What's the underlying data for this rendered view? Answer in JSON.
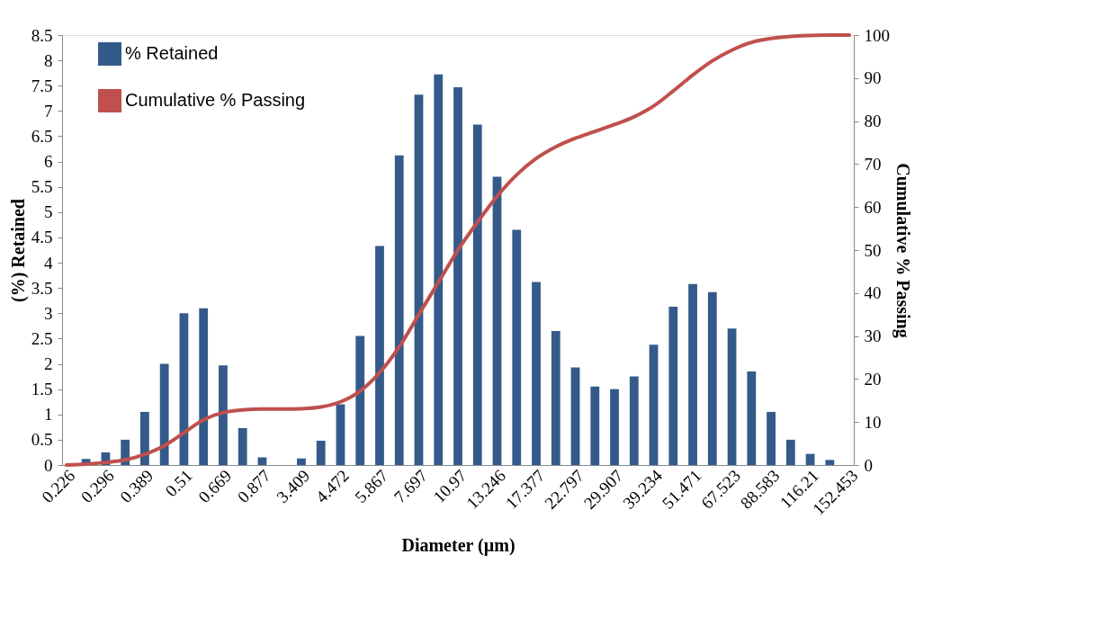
{
  "chart_data": {
    "type": "bar",
    "categories": [
      "0.226",
      null,
      "0.296",
      null,
      "0.389",
      null,
      "0.51",
      null,
      "0.669",
      null,
      "0.877",
      null,
      "3.409",
      null,
      "4.472",
      null,
      "5.867",
      null,
      "7.697",
      null,
      "10.97",
      null,
      "13.246",
      null,
      "17.377",
      null,
      "22.797",
      null,
      "29.907",
      null,
      "39.234",
      null,
      "51.471",
      null,
      "67.523",
      null,
      "88.583",
      null,
      "116.21",
      null,
      "152.453"
    ],
    "series": [
      {
        "name": "% Retained",
        "color": "#345a8a",
        "values": [
          0,
          0.12,
          0.25,
          0.5,
          1.05,
          2.0,
          3.0,
          3.1,
          1.97,
          0.73,
          0.15,
          0,
          0.13,
          0.48,
          1.2,
          2.55,
          4.33,
          6.12,
          7.32,
          7.72,
          7.47,
          6.73,
          5.7,
          4.65,
          3.62,
          2.65,
          1.93,
          1.55,
          1.5,
          1.75,
          2.38,
          3.13,
          3.58,
          3.42,
          2.7,
          1.85,
          1.05,
          0.5,
          0.22,
          0.1,
          0
        ]
      },
      {
        "name": "Cumulative  % Passing",
        "type": "line",
        "axis": "y2",
        "color": "#c0504d",
        "values": [
          0,
          0.2,
          0.6,
          1.2,
          2.5,
          4.5,
          7.5,
          10.5,
          12.2,
          12.8,
          13.0,
          13.0,
          13.1,
          13.5,
          14.7,
          17.2,
          21.5,
          27.5,
          35,
          42.5,
          50,
          56.5,
          62.5,
          67.5,
          71.3,
          74,
          76,
          77.6,
          79.2,
          81,
          83.5,
          87,
          90.7,
          94,
          96.5,
          98.3,
          99.2,
          99.7,
          99.9,
          100,
          100
        ]
      }
    ],
    "xlabel": "Diameter (µm)",
    "ylabel": "(%) Retained",
    "y2label": "Cumulative  % Passing",
    "ylim": [
      0,
      8.5
    ],
    "yticks": [
      0,
      0.5,
      1,
      1.5,
      2,
      2.5,
      3,
      3.5,
      4,
      4.5,
      5,
      5.5,
      6,
      6.5,
      7,
      7.5,
      8,
      8.5
    ],
    "y2lim": [
      0,
      100
    ],
    "y2ticks": [
      0,
      10,
      20,
      30,
      40,
      50,
      60,
      70,
      80,
      90,
      100
    ],
    "legend": "top left",
    "grid": false,
    "line_style": "solid"
  }
}
